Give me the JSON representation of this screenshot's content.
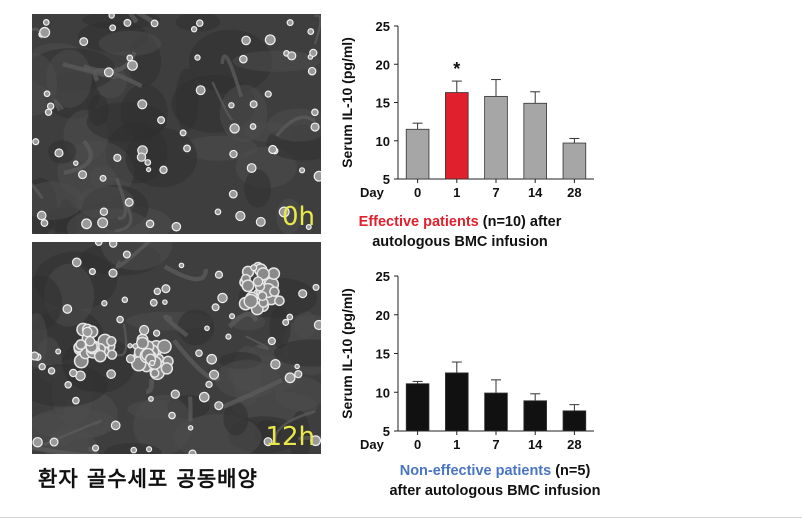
{
  "images": {
    "top_label": "0h",
    "bottom_label": "12h",
    "caption": "환자 골수세포 공동배양"
  },
  "colors": {
    "highlight_bar": "#e0202c",
    "gray_bar": "#a6a6a6",
    "black_bar": "#111111",
    "effective_text": "#e0202c",
    "noneffective_text": "#4a74c4"
  },
  "chart_data": [
    {
      "type": "bar",
      "ylabel": "Serum IL-10 (pg/ml)",
      "xlabel": "Day",
      "categories": [
        "0",
        "1",
        "7",
        "14",
        "28"
      ],
      "values": [
        11.5,
        16.3,
        15.8,
        14.9,
        9.7
      ],
      "errors": [
        0.8,
        1.5,
        2.2,
        1.5,
        0.6
      ],
      "ylim": [
        5,
        25
      ],
      "yticks": [
        5,
        10,
        15,
        20,
        25
      ],
      "significance": "*",
      "caption_colored": "Effective patients",
      "caption_rest": " (n=10) after",
      "caption_line2": "autologous BMC infusion"
    },
    {
      "type": "bar",
      "ylabel": "Serum IL-10 (pg/ml)",
      "xlabel": "Day",
      "categories": [
        "0",
        "1",
        "7",
        "14",
        "28"
      ],
      "values": [
        11.1,
        12.5,
        9.9,
        8.9,
        7.6
      ],
      "errors": [
        0.3,
        1.4,
        1.7,
        0.9,
        0.8
      ],
      "ylim": [
        5,
        25
      ],
      "yticks": [
        5,
        10,
        15,
        20,
        25
      ],
      "caption_colored": "Non-effective patients",
      "caption_rest": " (n=5)",
      "caption_line2": "after autologous BMC infusion"
    }
  ]
}
